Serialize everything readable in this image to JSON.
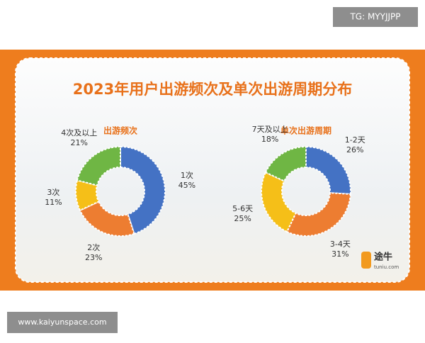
{
  "header": {
    "title": "2023年用户出游频次及单次出游周期分布",
    "watermark": "TG: MYYJJPP",
    "footer": "www.kaiyunspace.com",
    "logo": "途牛",
    "logo_sub": "tuniu.com"
  },
  "chart_data": [
    {
      "type": "pie",
      "title": "出游频次",
      "categories": [
        "1次",
        "2次",
        "3次",
        "4次及以上"
      ],
      "values": [
        45,
        23,
        11,
        21
      ],
      "value_labels": [
        "45%",
        "23%",
        "11%",
        "21%"
      ],
      "colors": [
        "#4472c4",
        "#ed7d31",
        "#f5bf18",
        "#6fb644"
      ]
    },
    {
      "type": "pie",
      "title": "单次出游周期",
      "categories": [
        "1-2天",
        "3-4天",
        "5-6天",
        "7天及以上"
      ],
      "values": [
        26,
        31,
        25,
        18
      ],
      "value_labels": [
        "26%",
        "31%",
        "25%",
        "18%"
      ],
      "colors": [
        "#4472c4",
        "#ed7d31",
        "#f5bf18",
        "#6fb644"
      ]
    }
  ]
}
